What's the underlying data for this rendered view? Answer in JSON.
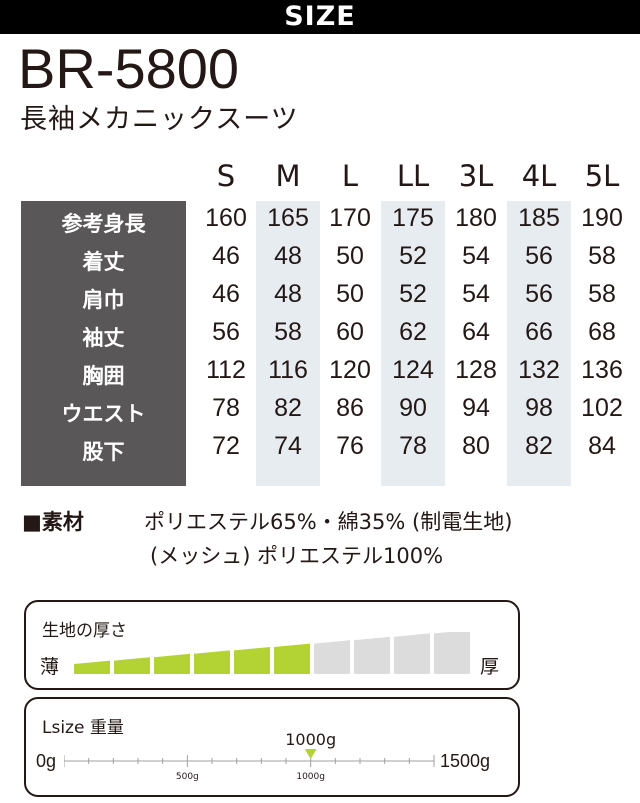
{
  "header": {
    "title": "SIZE"
  },
  "product": {
    "model": "BR-5800",
    "name": "長袖メカニックスーツ"
  },
  "size_table": {
    "sizes": [
      "S",
      "M",
      "L",
      "LL",
      "3L",
      "4L",
      "5L"
    ],
    "highlighted_sizes": [
      "M",
      "LL",
      "4L"
    ],
    "rows": [
      {
        "label": "参考身長",
        "values": [
          "160",
          "165",
          "170",
          "175",
          "180",
          "185",
          "190"
        ]
      },
      {
        "label": "着丈",
        "values": [
          "46",
          "48",
          "50",
          "52",
          "54",
          "56",
          "58"
        ]
      },
      {
        "label": "肩巾",
        "values": [
          "46",
          "48",
          "50",
          "52",
          "54",
          "56",
          "58"
        ]
      },
      {
        "label": "袖丈",
        "values": [
          "56",
          "58",
          "60",
          "62",
          "64",
          "66",
          "68"
        ]
      },
      {
        "label": "胸囲",
        "values": [
          "112",
          "116",
          "120",
          "124",
          "128",
          "132",
          "136"
        ]
      },
      {
        "label": "ウエスト",
        "values": [
          "78",
          "82",
          "86",
          "90",
          "94",
          "98",
          "102"
        ]
      },
      {
        "label": "股下",
        "values": [
          "72",
          "74",
          "76",
          "78",
          "80",
          "82",
          "84"
        ]
      }
    ]
  },
  "material": {
    "label": "■素材",
    "lines": [
      "ポリエステル65%・綿35% (制電生地)",
      "(メッシュ) ポリエステル100%"
    ]
  },
  "thickness": {
    "title": "生地の厚さ",
    "thin_label": "薄",
    "thick_label": "厚",
    "level": 6,
    "max_level": 10,
    "filled_color": "#b3d334",
    "empty_color": "#dcdcdd"
  },
  "weight": {
    "title": "Lsize 重量",
    "value_label": "1000g",
    "min_label": "0g",
    "max_label": "1500g",
    "mid_tick_label": "500g",
    "marker_tick_label": "1000g",
    "value": 1000,
    "min": 0,
    "max": 1500,
    "marker_color": "#b3d334"
  }
}
